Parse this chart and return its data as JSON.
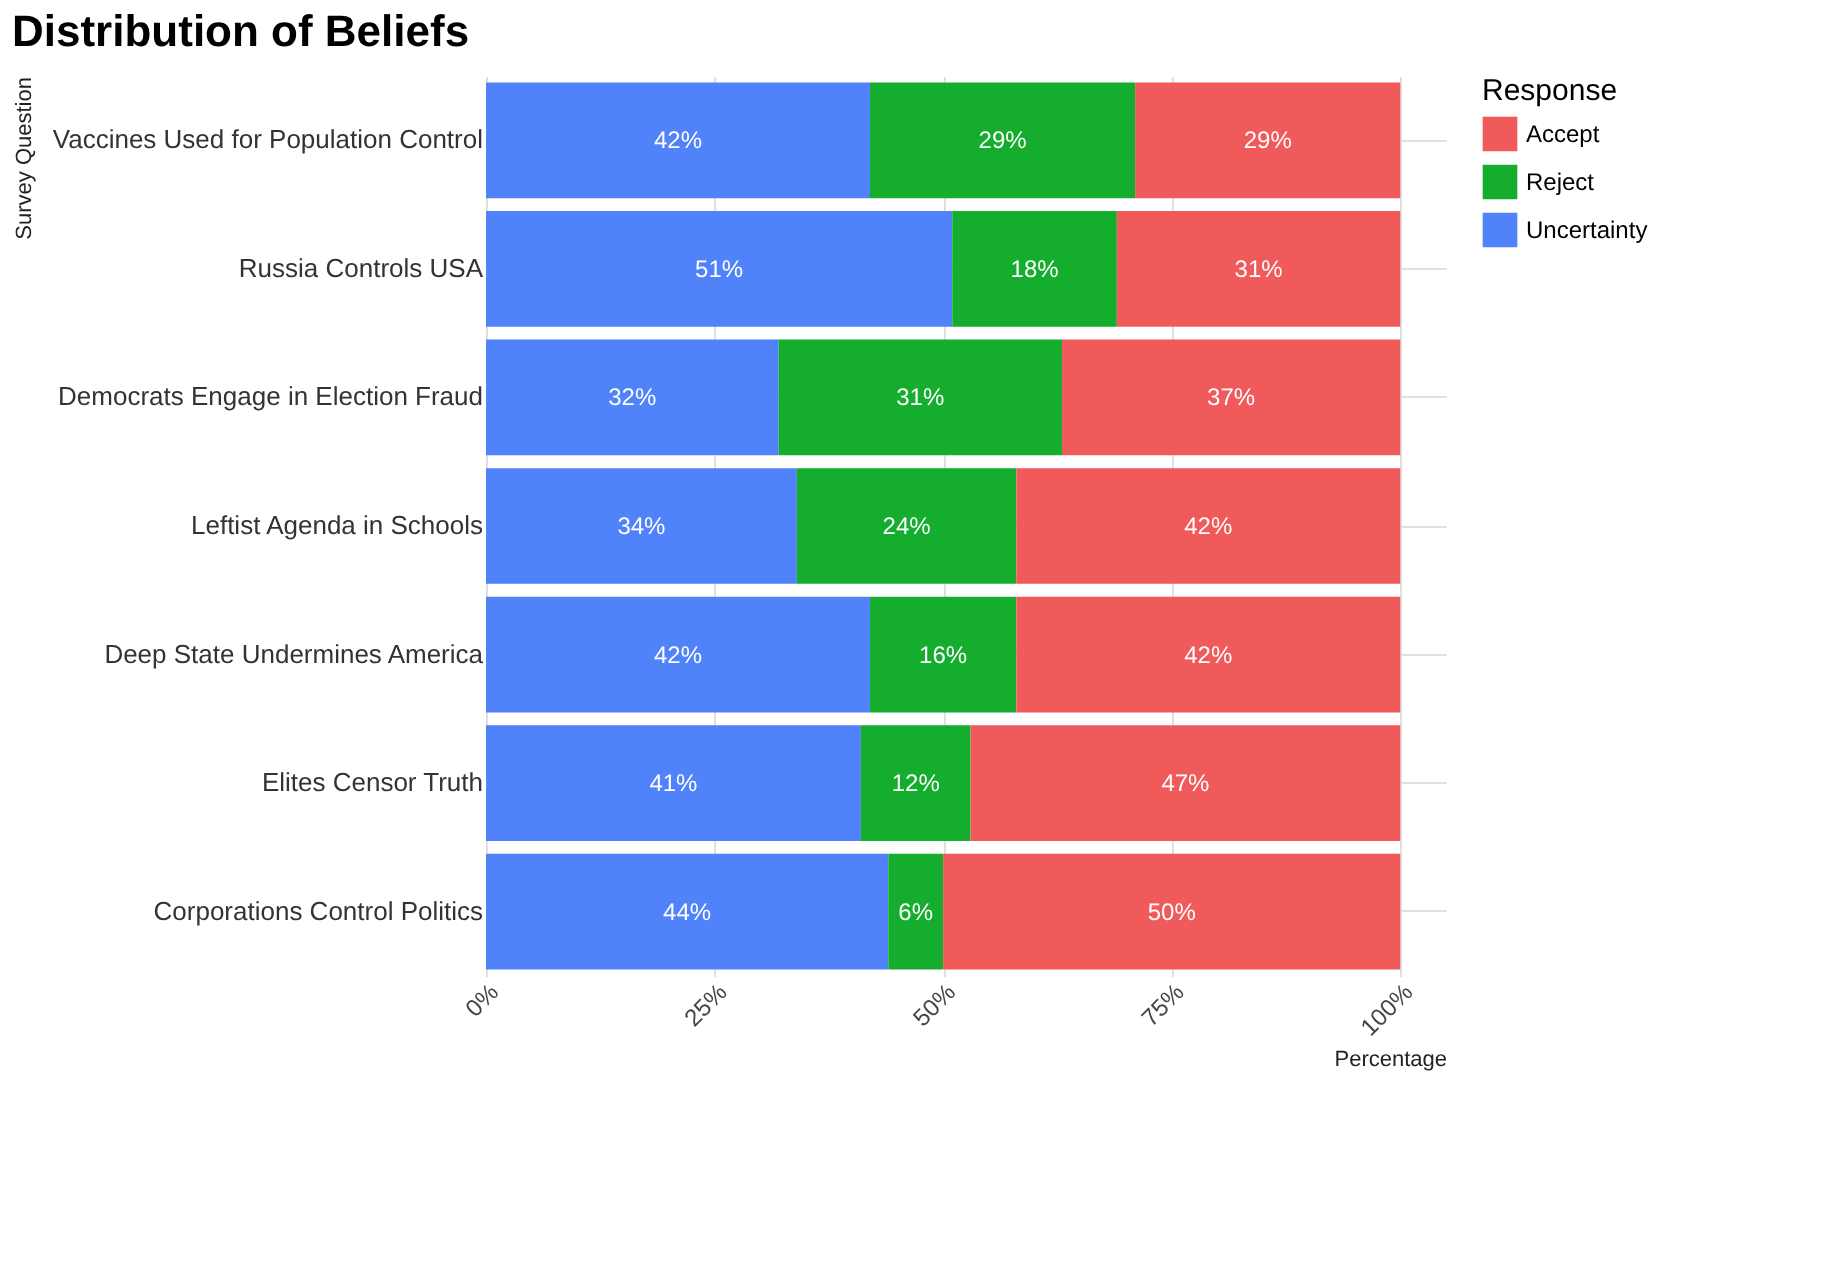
{
  "chart_data": {
    "type": "bar",
    "orientation": "horizontal",
    "stacked": true,
    "title": "Distribution of Beliefs",
    "xlabel": "Percentage",
    "ylabel": "Survey Question",
    "legend_title": "Response",
    "legend": "right",
    "grid": true,
    "categories": [
      "Vaccines Used for Population Control",
      "Russia Controls USA",
      "Democrats Engage in Election Fraud",
      "Leftist Agenda in Schools",
      "Deep State Undermines America",
      "Elites Censor Truth",
      "Corporations Control Politics"
    ],
    "xlim": [
      0,
      105
    ],
    "xticks": [
      {
        "value": 0,
        "label": "0%"
      },
      {
        "value": 25,
        "label": "25%"
      },
      {
        "value": 50,
        "label": "50%"
      },
      {
        "value": 75,
        "label": "75%"
      },
      {
        "value": 100,
        "label": "100%"
      }
    ],
    "series": [
      {
        "name": "Uncertainty",
        "color": "#5082fa",
        "values": [
          42,
          51,
          32,
          34,
          42,
          41,
          44
        ],
        "value_labels": [
          "42%",
          "51%",
          "32%",
          "34%",
          "42%",
          "41%",
          "44%"
        ]
      },
      {
        "name": "Reject",
        "color": "#14ad2e",
        "values": [
          29,
          18,
          31,
          24,
          16,
          12,
          6
        ],
        "value_labels": [
          "29%",
          "18%",
          "31%",
          "24%",
          "16%",
          "12%",
          "6%"
        ]
      },
      {
        "name": "Accept",
        "color": "#f05a5a",
        "values": [
          29,
          31,
          37,
          42,
          42,
          47,
          50
        ],
        "value_labels": [
          "29%",
          "31%",
          "37%",
          "42%",
          "42%",
          "47%",
          "50%"
        ]
      }
    ]
  }
}
